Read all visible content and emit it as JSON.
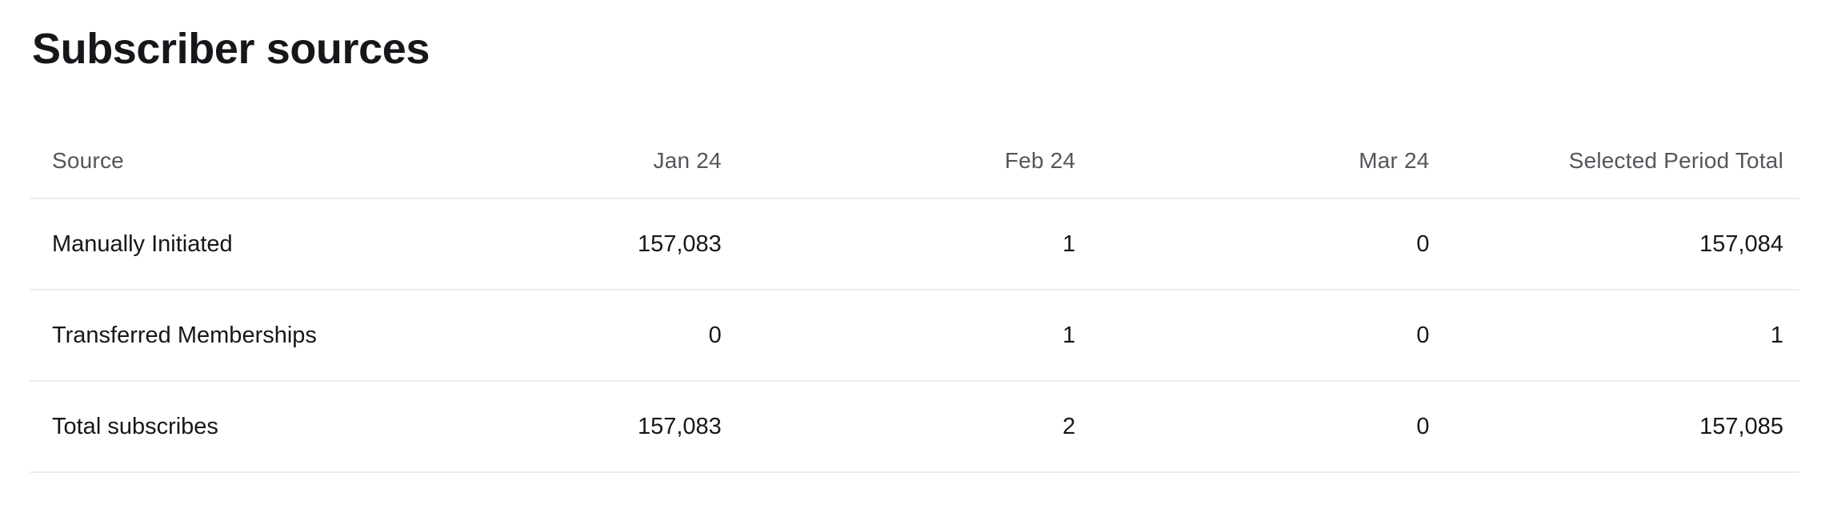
{
  "page": {
    "title": "Subscriber sources"
  },
  "table": {
    "columns": [
      "Source",
      "Jan 24",
      "Feb 24",
      "Mar 24",
      "Selected Period Total"
    ],
    "rows": [
      {
        "name": "Manually Initiated",
        "cells": [
          "157,083",
          "1",
          "0",
          "157,084"
        ]
      },
      {
        "name": "Transferred Memberships",
        "cells": [
          "0",
          "1",
          "0",
          "1"
        ]
      },
      {
        "name": "Total subscribes",
        "cells": [
          "157,083",
          "2",
          "0",
          "157,085"
        ]
      }
    ]
  },
  "colors": {
    "background": "#ffffff",
    "title_text": "#15171a",
    "header_text": "#54565b",
    "body_text": "#15171a",
    "divider": "#ececec"
  }
}
